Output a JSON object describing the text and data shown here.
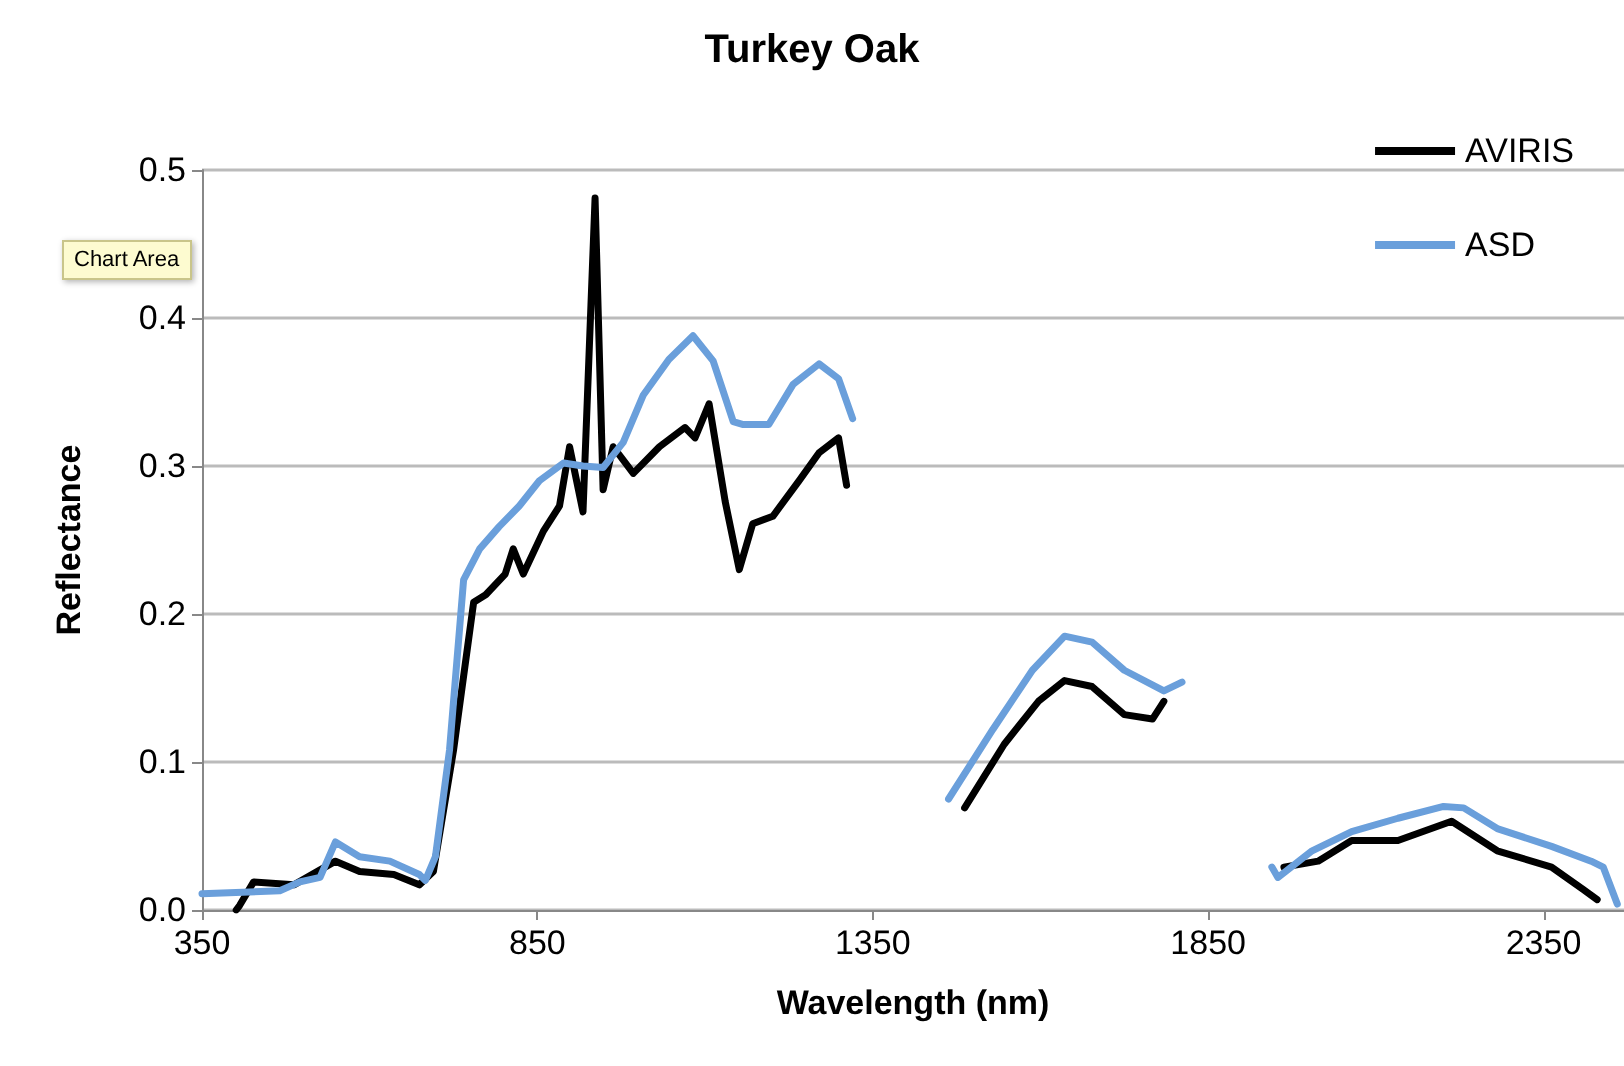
{
  "chart_data": {
    "type": "line",
    "title": "Turkey Oak",
    "xlabel": "Wavelength (nm)",
    "ylabel": "Reflectance",
    "annotations": [
      "Chart Area"
    ],
    "xlim": [
      350,
      2470
    ],
    "xticks": [
      350,
      850,
      1350,
      1850,
      2350
    ],
    "ylim": [
      0,
      0.5
    ],
    "yticks": [
      {
        "value": 0,
        "label": "0.0"
      },
      {
        "value": 0.1,
        "label": "0.1"
      },
      {
        "value": 0.2,
        "label": "0.2"
      },
      {
        "value": 0.3,
        "label": "0.3"
      },
      {
        "value": 0.4,
        "label": "0.4"
      },
      {
        "value": 0.5,
        "label": "0.5"
      }
    ],
    "grid": "y",
    "legend": "top right",
    "marker": "none",
    "line_style": "solid",
    "series": [
      {
        "name": "AVIRIS",
        "color": "#000000",
        "x": [
          401,
          406,
          427,
          487,
          549,
          585,
          636,
          674,
          695,
          725,
          755,
          773,
          802,
          814,
          829,
          859,
          883,
          898,
          918,
          936,
          948,
          963,
          993,
          1032,
          1070,
          1085,
          1106,
          1130,
          1151,
          1171,
          1201,
          1240,
          1270,
          1299,
          1311,
          1400,
          1487,
          1546,
          1597,
          1636,
          1677,
          1725,
          1767,
          1784,
          1870,
          1963,
          2014,
          2064,
          2133,
          2213,
          2281,
          2362,
          2409,
          2430
        ],
        "values": [
          0.0,
          0.003,
          0.019,
          0.017,
          0.033,
          0.026,
          0.024,
          0.017,
          0.026,
          0.108,
          0.208,
          0.213,
          0.227,
          0.244,
          0.227,
          0.256,
          0.273,
          0.313,
          0.269,
          0.481,
          0.284,
          0.313,
          0.295,
          0.313,
          0.326,
          0.319,
          0.342,
          0.276,
          0.23,
          0.261,
          0.266,
          0.29,
          0.309,
          0.319,
          0.287,
          null,
          0.069,
          0.112,
          0.141,
          0.155,
          0.151,
          0.132,
          0.129,
          0.141,
          null,
          0.029,
          0.033,
          0.047,
          0.047,
          0.06,
          0.04,
          0.029,
          0.014,
          0.007
        ]
      },
      {
        "name": "ASD",
        "color": "#6a9fdb",
        "x": [
          350,
          466,
          496,
          526,
          549,
          585,
          630,
          674,
          683,
          698,
          719,
          740,
          764,
          793,
          823,
          853,
          889,
          918,
          948,
          978,
          1008,
          1046,
          1082,
          1112,
          1142,
          1157,
          1195,
          1231,
          1270,
          1299,
          1320,
          1390,
          1463,
          1529,
          1588,
          1636,
          1677,
          1725,
          1784,
          1811,
          1880,
          1945,
          1954,
          2005,
          2064,
          2133,
          2201,
          2231,
          2281,
          2362,
          2421,
          2439,
          2460
        ],
        "values": [
          0.011,
          0.013,
          0.019,
          0.022,
          0.046,
          0.036,
          0.033,
          0.024,
          0.02,
          0.036,
          0.108,
          0.223,
          0.244,
          0.259,
          0.273,
          0.29,
          0.302,
          0.3,
          0.299,
          0.316,
          0.348,
          0.372,
          0.388,
          0.371,
          0.33,
          0.328,
          0.328,
          0.355,
          0.369,
          0.359,
          0.332,
          null,
          0.075,
          0.122,
          0.162,
          0.185,
          0.181,
          0.162,
          0.148,
          0.154,
          null,
          0.029,
          0.022,
          0.04,
          0.053,
          0.062,
          0.07,
          0.069,
          0.055,
          0.043,
          0.033,
          0.029,
          0.004
        ]
      }
    ]
  }
}
